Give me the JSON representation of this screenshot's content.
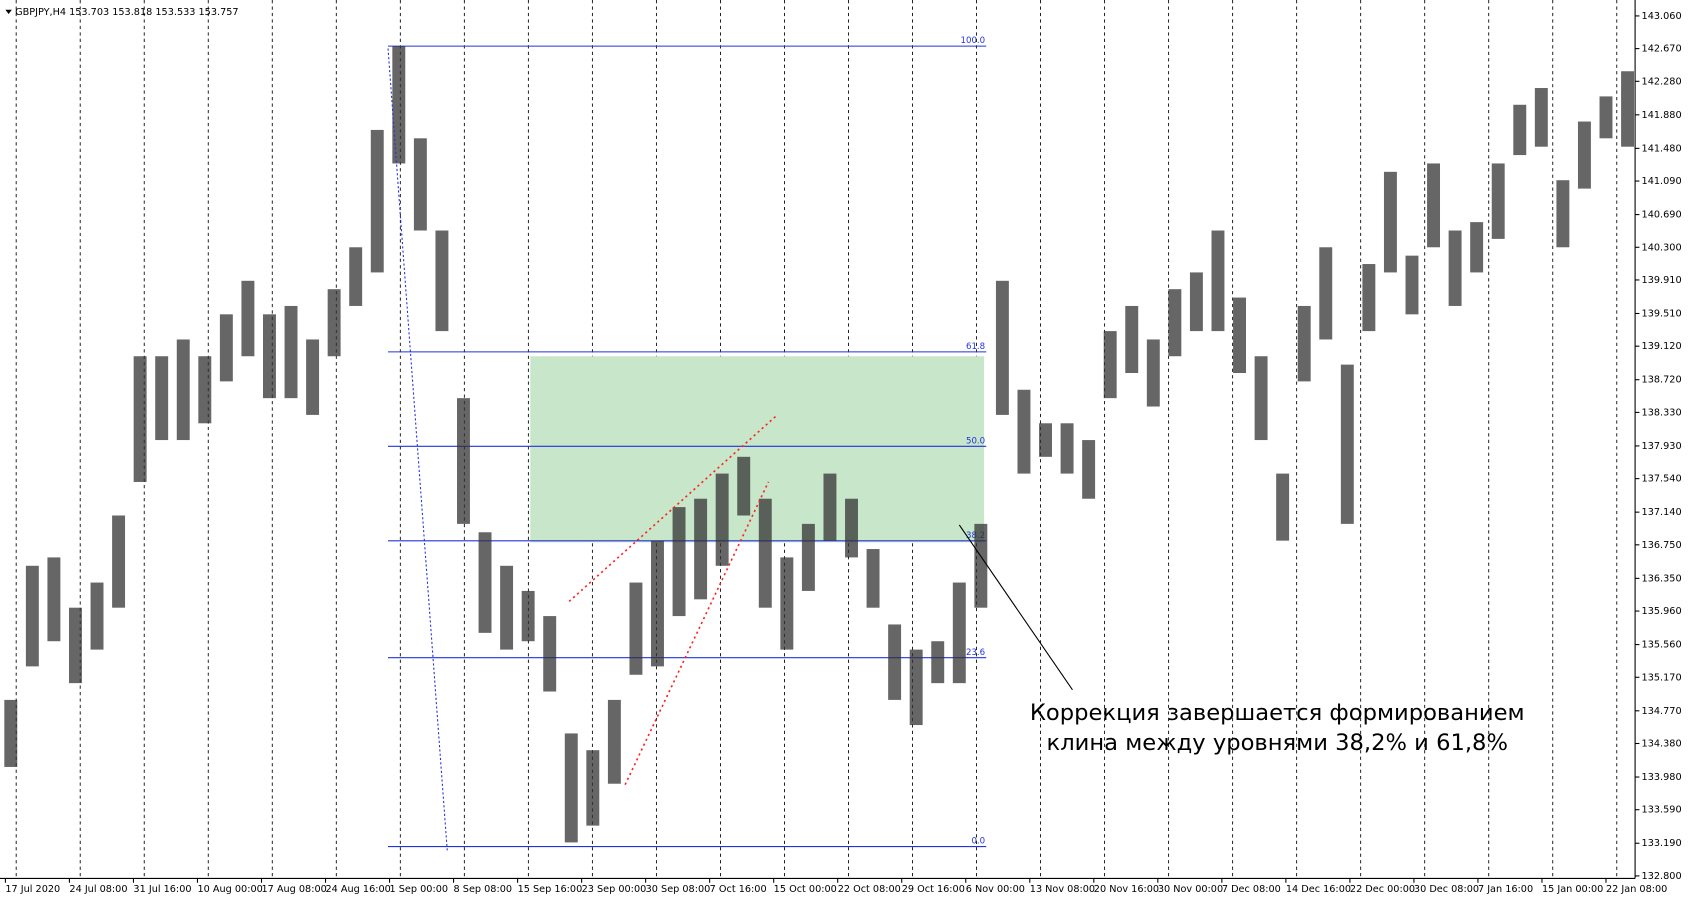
{
  "chart_data": {
    "type": "range-bars",
    "title": "GBPJPY,H4  153.703 153.818 153.533 153.757",
    "annotation": [
      "Коррекция завершается формированием",
      "клина между уровнями 38,2% и 61,8%"
    ],
    "categories": [
      "17 Jul 2020",
      "24 Jul 08:00",
      "31 Jul 16:00",
      "10 Aug 00:00",
      "17 Aug 08:00",
      "24 Aug 16:00",
      "1 Sep 00:00",
      "8 Sep 08:00",
      "15 Sep 16:00",
      "23 Sep 00:00",
      "30 Sep 08:00",
      "7 Oct 16:00",
      "15 Oct 00:00",
      "22 Oct 08:00",
      "29 Oct 16:00",
      "6 Nov 00:00",
      "13 Nov 08:00",
      "20 Nov 16:00",
      "30 Nov 00:00",
      "7 Dec 08:00",
      "14 Dec 16:00",
      "22 Dec 00:00",
      "30 Dec 08:00",
      "7 Jan 16:00",
      "15 Jan 00:00",
      "22 Jan 08:00"
    ],
    "price": {
      "color": "#333333",
      "low": [
        134.1,
        135.3,
        135.6,
        135.1,
        135.5,
        136.0,
        137.5,
        138.0,
        138.0,
        138.2,
        138.7,
        139.0,
        138.5,
        138.5,
        138.3,
        139.0,
        139.6,
        140.0,
        141.3,
        140.5,
        139.3,
        137.0,
        135.7,
        135.5,
        135.6,
        135.0,
        133.2,
        133.4,
        133.9,
        135.2,
        135.3,
        135.9,
        136.1,
        136.5,
        137.1,
        136.0,
        135.5,
        136.2,
        136.8,
        136.6,
        136.0,
        134.9,
        134.6,
        135.1,
        135.1,
        136.0,
        138.3,
        137.6,
        137.8,
        137.6,
        137.3,
        138.5,
        138.8,
        138.4,
        139.0,
        139.3,
        139.3,
        138.8,
        138.0,
        136.8,
        138.7,
        139.2,
        137.0,
        139.3,
        140.0,
        139.5,
        140.3,
        139.6,
        140.0,
        140.4,
        141.4,
        141.5,
        140.3,
        141.0,
        141.6,
        141.5
      ],
      "high": [
        134.9,
        136.5,
        136.6,
        136.0,
        136.3,
        137.1,
        139.0,
        139.0,
        139.2,
        139.0,
        139.5,
        139.9,
        139.5,
        139.6,
        139.2,
        139.8,
        140.3,
        141.7,
        142.7,
        141.6,
        140.5,
        138.5,
        136.9,
        136.5,
        136.2,
        135.9,
        134.5,
        134.3,
        134.9,
        136.3,
        136.8,
        137.2,
        137.3,
        137.6,
        137.8,
        137.3,
        136.6,
        137.0,
        137.6,
        137.3,
        136.7,
        135.8,
        135.5,
        135.6,
        136.3,
        137.0,
        139.9,
        138.6,
        138.2,
        138.2,
        138.0,
        139.3,
        139.6,
        139.2,
        139.8,
        140.0,
        140.5,
        139.7,
        139.0,
        137.6,
        139.6,
        140.3,
        138.9,
        140.1,
        141.2,
        140.2,
        141.3,
        140.5,
        140.6,
        141.3,
        142.0,
        142.2,
        141.1,
        141.8,
        142.1,
        142.4
      ]
    },
    "fib": {
      "high": 142.7,
      "low": 133.15,
      "color": "#2233dd",
      "levels": [
        {
          "value": 0,
          "label": "0.0"
        },
        {
          "value": 23.6,
          "label": "23.6"
        },
        {
          "value": 38.2,
          "label": "38.2"
        },
        {
          "value": 50,
          "label": "50.0"
        },
        {
          "value": 61.8,
          "label": "61.8"
        },
        {
          "value": 100,
          "label": "100.0"
        }
      ]
    },
    "zone": {
      "low": 136.78,
      "high": 139.0,
      "color": "#c8e6c9"
    },
    "ylim": [
      132.77,
      143.25
    ],
    "yticks": [
      {
        "value": 132.8,
        "label": "132.800"
      },
      {
        "value": 133.19,
        "label": "133.190"
      },
      {
        "value": 133.59,
        "label": "133.590"
      },
      {
        "value": 133.98,
        "label": "133.980"
      },
      {
        "value": 134.38,
        "label": "134.380"
      },
      {
        "value": 134.77,
        "label": "134.770"
      },
      {
        "value": 135.17,
        "label": "135.170"
      },
      {
        "value": 135.56,
        "label": "135.560"
      },
      {
        "value": 135.96,
        "label": "135.960"
      },
      {
        "value": 136.35,
        "label": "136.350"
      },
      {
        "value": 136.75,
        "label": "136.750"
      },
      {
        "value": 137.14,
        "label": "137.140"
      },
      {
        "value": 137.54,
        "label": "137.540"
      },
      {
        "value": 137.93,
        "label": "137.930"
      },
      {
        "value": 138.33,
        "label": "138.330"
      },
      {
        "value": 138.72,
        "label": "138.720"
      },
      {
        "value": 139.12,
        "label": "139.120"
      },
      {
        "value": 139.51,
        "label": "139.510"
      },
      {
        "value": 139.91,
        "label": "139.910"
      },
      {
        "value": 140.3,
        "label": "140.300"
      },
      {
        "value": 140.69,
        "label": "140.690"
      },
      {
        "value": 141.09,
        "label": "141.090"
      },
      {
        "value": 141.48,
        "label": "141.480"
      },
      {
        "value": 141.88,
        "label": "141.880"
      },
      {
        "value": 142.28,
        "label": "142.280"
      },
      {
        "value": 142.67,
        "label": "142.670"
      },
      {
        "value": 143.06,
        "label": "143.060"
      }
    ],
    "grid": true
  }
}
